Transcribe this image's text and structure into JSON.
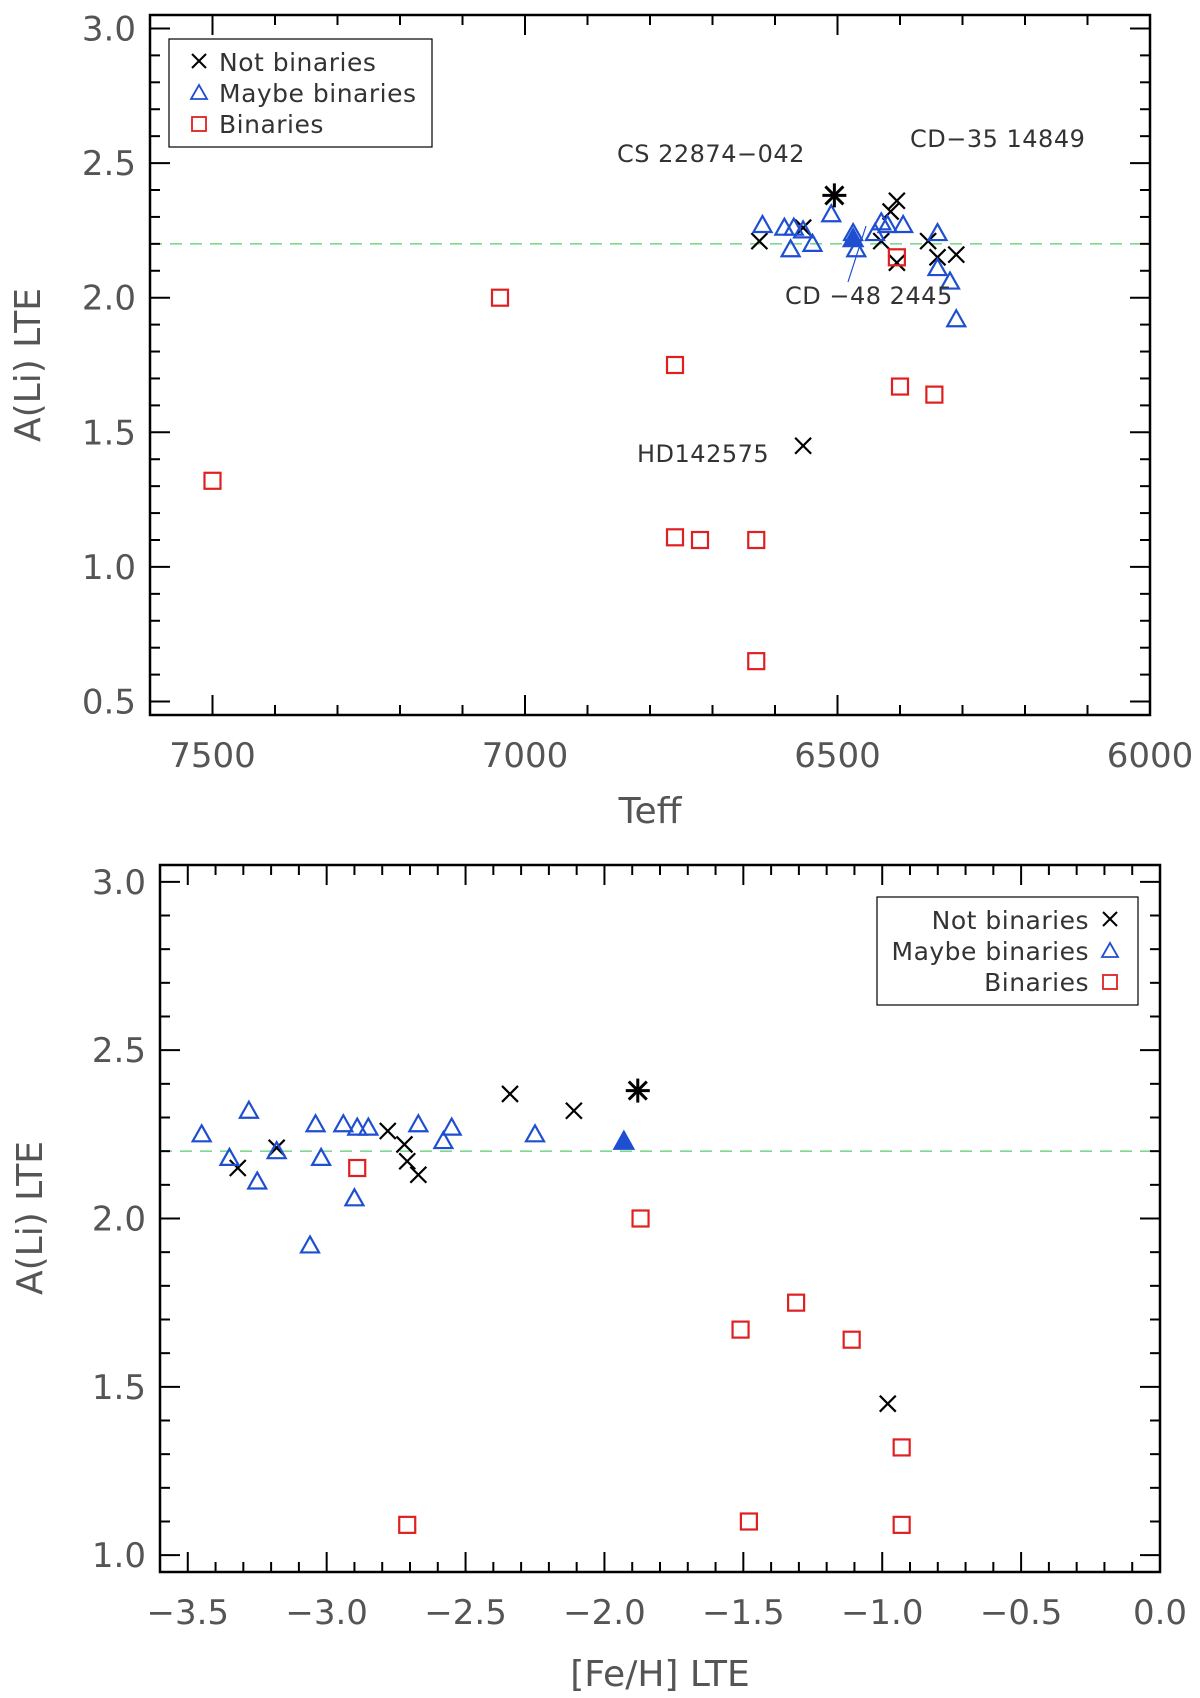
{
  "chart_data": [
    {
      "type": "scatter",
      "xlabel": "Teff",
      "ylabel": "A(Li) LTE",
      "xlim": [
        7600,
        6000
      ],
      "ylim": [
        0.45,
        3.05
      ],
      "xticks": [
        7500,
        7000,
        6500,
        6000
      ],
      "xtick_labels": [
        "7500",
        "7000",
        "6500",
        "6000"
      ],
      "yticks": [
        0.5,
        1.0,
        1.5,
        2.0,
        2.5,
        3.0
      ],
      "ytick_labels": [
        "0.5",
        "1.0",
        "1.5",
        "2.0",
        "2.5",
        "3.0"
      ],
      "reference_line": 2.2,
      "legend_position": "top-left",
      "legend": [
        "Not binaries",
        "Maybe binaries",
        "Binaries"
      ],
      "annotations": [
        {
          "text": "CS 22874−042"
        },
        {
          "text": "CD−35 14849"
        },
        {
          "text": "CD −48 2445"
        },
        {
          "text": "HD142575"
        }
      ],
      "series": [
        {
          "name": "Not binaries",
          "marker": "x",
          "color": "#000000",
          "points": [
            [
              6625,
              2.21
            ],
            [
              6555,
              2.26
            ],
            [
              6430,
              2.21
            ],
            [
              6415,
              2.32
            ],
            [
              6405,
              2.36
            ],
            [
              6405,
              2.13
            ],
            [
              6355,
              2.21
            ],
            [
              6340,
              2.15
            ],
            [
              6310,
              2.16
            ],
            [
              6555,
              1.45
            ]
          ]
        },
        {
          "name": "Maybe binaries",
          "marker": "triangle",
          "color": "#1f4fd1",
          "points": [
            [
              6620,
              2.27
            ],
            [
              6585,
              2.26
            ],
            [
              6575,
              2.18
            ],
            [
              6570,
              2.26
            ],
            [
              6555,
              2.25
            ],
            [
              6540,
              2.2
            ],
            [
              6510,
              2.31
            ],
            [
              6475,
              2.24
            ],
            [
              6470,
              2.18
            ],
            [
              6440,
              2.24
            ],
            [
              6430,
              2.28
            ],
            [
              6420,
              2.27
            ],
            [
              6395,
              2.27
            ],
            [
              6340,
              2.24
            ],
            [
              6340,
              2.11
            ],
            [
              6320,
              2.06
            ],
            [
              6310,
              1.92
            ]
          ]
        },
        {
          "name": "Binaries",
          "marker": "square",
          "color": "#e02020",
          "points": [
            [
              7500,
              1.32
            ],
            [
              7040,
              2.0
            ],
            [
              6760,
              1.75
            ],
            [
              6760,
              1.11
            ],
            [
              6720,
              1.1
            ],
            [
              6630,
              1.1
            ],
            [
              6630,
              0.65
            ],
            [
              6405,
              2.15
            ],
            [
              6400,
              1.67
            ],
            [
              6345,
              1.64
            ]
          ]
        },
        {
          "name": "CS 22874−042",
          "marker": "asterisk",
          "color": "#000000",
          "points": [
            [
              6505,
              2.38
            ]
          ]
        },
        {
          "name": "CD −48 2445",
          "marker": "triangle-filled",
          "color": "#1f4fd1",
          "points": [
            [
              6475,
              2.22
            ]
          ]
        }
      ]
    },
    {
      "type": "scatter",
      "xlabel": "[Fe/H] LTE",
      "ylabel": "A(Li) LTE",
      "xlim": [
        -3.6,
        0.0
      ],
      "ylim": [
        0.95,
        3.05
      ],
      "xticks": [
        -3.5,
        -3.0,
        -2.5,
        -2.0,
        -1.5,
        -1.0,
        -0.5,
        0.0
      ],
      "xtick_labels": [
        "−3.5",
        "−3.0",
        "−2.5",
        "−2.0",
        "−1.5",
        "−1.0",
        "−0.5",
        "0.0"
      ],
      "yticks": [
        1.0,
        1.5,
        2.0,
        2.5,
        3.0
      ],
      "ytick_labels": [
        "1.0",
        "1.5",
        "2.0",
        "2.5",
        "3.0"
      ],
      "reference_line": 2.2,
      "legend_position": "top-right",
      "legend": [
        "Not binaries",
        "Maybe binaries",
        "Binaries"
      ],
      "series": [
        {
          "name": "Not binaries",
          "marker": "x",
          "color": "#000000",
          "points": [
            [
              -3.32,
              2.15
            ],
            [
              -3.18,
              2.21
            ],
            [
              -2.78,
              2.26
            ],
            [
              -2.72,
              2.22
            ],
            [
              -2.71,
              2.17
            ],
            [
              -2.67,
              2.13
            ],
            [
              -2.34,
              2.37
            ],
            [
              -2.11,
              2.32
            ],
            [
              -0.98,
              1.45
            ]
          ]
        },
        {
          "name": "Maybe binaries",
          "marker": "triangle",
          "color": "#1f4fd1",
          "points": [
            [
              -3.45,
              2.25
            ],
            [
              -3.35,
              2.18
            ],
            [
              -3.28,
              2.32
            ],
            [
              -3.25,
              2.11
            ],
            [
              -3.18,
              2.2
            ],
            [
              -3.06,
              1.92
            ],
            [
              -3.04,
              2.28
            ],
            [
              -3.02,
              2.18
            ],
            [
              -2.94,
              2.28
            ],
            [
              -2.9,
              2.06
            ],
            [
              -2.89,
              2.27
            ],
            [
              -2.85,
              2.27
            ],
            [
              -2.67,
              2.28
            ],
            [
              -2.58,
              2.23
            ],
            [
              -2.55,
              2.27
            ],
            [
              -2.25,
              2.25
            ]
          ]
        },
        {
          "name": "Binaries",
          "marker": "square",
          "color": "#e02020",
          "points": [
            [
              -2.89,
              2.15
            ],
            [
              -2.71,
              1.09
            ],
            [
              -1.87,
              2.0
            ],
            [
              -1.51,
              1.67
            ],
            [
              -1.48,
              1.1
            ],
            [
              -1.31,
              1.75
            ],
            [
              -1.11,
              1.64
            ],
            [
              -0.93,
              1.32
            ],
            [
              -0.93,
              1.09
            ]
          ]
        },
        {
          "name": "CS 22874−042",
          "marker": "asterisk",
          "color": "#000000",
          "points": [
            [
              -1.88,
              2.38
            ]
          ]
        },
        {
          "name": "CD −48 2445",
          "marker": "triangle-filled",
          "color": "#1f4fd1",
          "points": [
            [
              -1.93,
              2.23
            ]
          ]
        }
      ]
    }
  ],
  "colors": {
    "axis": "#000000",
    "tick_text": "#555555",
    "reference_line": "#7fd88f",
    "not_binaries": "#000000",
    "maybe_binaries": "#1f4fd1",
    "binaries": "#e02020"
  }
}
